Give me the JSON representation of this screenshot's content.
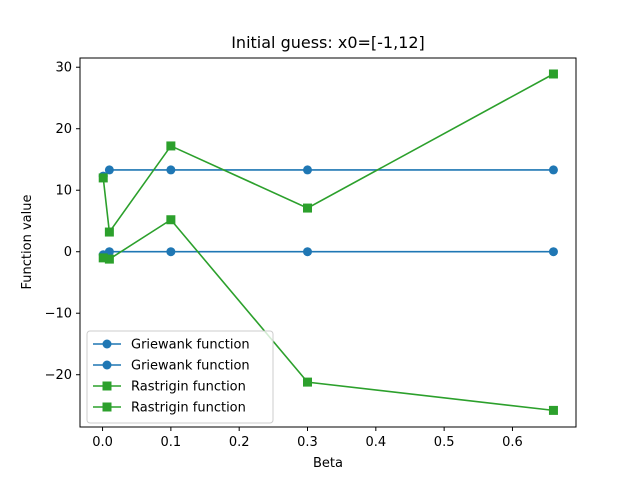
{
  "chart_data": {
    "type": "line",
    "title": "Initial guess: x0=[-1,12]",
    "xlabel": "Beta",
    "ylabel": "Function value",
    "xlim": [
      -0.033,
      0.693
    ],
    "ylim": [
      -28.5,
      31.5
    ],
    "xticks": [
      0.0,
      0.1,
      0.2,
      0.3,
      0.4,
      0.5,
      0.6
    ],
    "xtick_labels": [
      "0.0",
      "0.1",
      "0.2",
      "0.3",
      "0.4",
      "0.5",
      "0.6"
    ],
    "yticks": [
      -20,
      -10,
      0,
      10,
      20,
      30
    ],
    "ytick_labels": [
      "−20",
      "−10",
      "0",
      "10",
      "20",
      "30"
    ],
    "grid": false,
    "legend_position": "lower-left",
    "series": [
      {
        "name": "Griewank function",
        "color": "#1f77b4",
        "marker": "circle",
        "x": [
          0.001,
          0.01,
          0.1,
          0.3,
          0.66
        ],
        "y": [
          12.3,
          13.3,
          13.3,
          13.3,
          13.3
        ]
      },
      {
        "name": "Griewank function",
        "color": "#1f77b4",
        "marker": "circle",
        "x": [
          0.001,
          0.01,
          0.1,
          0.3,
          0.66
        ],
        "y": [
          -0.5,
          0.0,
          0.0,
          0.0,
          0.0
        ]
      },
      {
        "name": "Rastrigin function",
        "color": "#2ca02c",
        "marker": "square",
        "x": [
          0.001,
          0.01,
          0.1,
          0.3,
          0.66
        ],
        "y": [
          12.0,
          3.2,
          17.2,
          7.1,
          28.9
        ]
      },
      {
        "name": "Rastrigin function",
        "color": "#2ca02c",
        "marker": "square",
        "x": [
          0.001,
          0.01,
          0.1,
          0.3,
          0.66
        ],
        "y": [
          -1.0,
          -1.2,
          5.2,
          -21.2,
          -25.8
        ]
      }
    ]
  }
}
